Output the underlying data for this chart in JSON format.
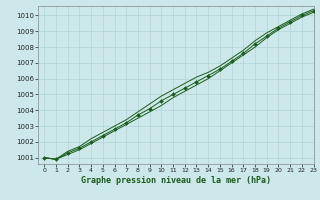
{
  "title": "Graphe pression niveau de la mer (hPa)",
  "background_color": "#cce8ea",
  "grid_color": "#b0d4d4",
  "line_color": "#1a5c1a",
  "xlim": [
    -0.5,
    23
  ],
  "ylim": [
    1000.6,
    1010.6
  ],
  "yticks": [
    1001,
    1002,
    1003,
    1004,
    1005,
    1006,
    1007,
    1008,
    1009,
    1010
  ],
  "xticks": [
    0,
    1,
    2,
    3,
    4,
    5,
    6,
    7,
    8,
    9,
    10,
    11,
    12,
    13,
    14,
    15,
    16,
    17,
    18,
    19,
    20,
    21,
    22,
    23
  ],
  "series": [
    [
      1001.0,
      1000.9,
      1001.2,
      1001.5,
      1001.9,
      1002.3,
      1002.7,
      1003.1,
      1003.5,
      1003.9,
      1004.3,
      1004.8,
      1005.2,
      1005.6,
      1006.0,
      1006.5,
      1007.0,
      1007.5,
      1008.0,
      1008.6,
      1009.1,
      1009.5,
      1009.9,
      1010.2
    ],
    [
      1001.0,
      1000.9,
      1001.3,
      1001.6,
      1002.0,
      1002.4,
      1002.8,
      1003.2,
      1003.7,
      1004.1,
      1004.6,
      1005.0,
      1005.4,
      1005.8,
      1006.2,
      1006.6,
      1007.1,
      1007.6,
      1008.2,
      1008.7,
      1009.2,
      1009.6,
      1010.0,
      1010.3
    ],
    [
      1001.0,
      1000.9,
      1001.4,
      1001.7,
      1002.2,
      1002.6,
      1003.0,
      1003.4,
      1003.9,
      1004.4,
      1004.9,
      1005.3,
      1005.7,
      1006.1,
      1006.4,
      1006.8,
      1007.3,
      1007.8,
      1008.4,
      1008.9,
      1009.3,
      1009.7,
      1010.1,
      1010.4
    ]
  ]
}
